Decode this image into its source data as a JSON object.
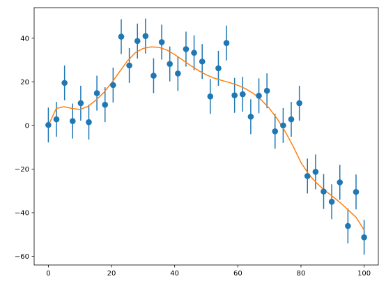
{
  "chart_data": {
    "type": "scatter",
    "title": "",
    "xlabel": "",
    "ylabel": "",
    "xlim": [
      -4.5,
      104.5
    ],
    "ylim": [
      -64,
      54
    ],
    "grid": false,
    "x_ticks": [
      0,
      20,
      40,
      60,
      80,
      100
    ],
    "y_ticks": [
      -60,
      -40,
      -20,
      0,
      20,
      40
    ],
    "colors": {
      "points": "#1f77b4",
      "line": "#ff7f0e",
      "axes": "#000000"
    },
    "series": [
      {
        "kind": "errorbar",
        "error": 8,
        "x": [
          0,
          2.56,
          5.13,
          7.69,
          10.26,
          12.82,
          15.38,
          17.95,
          20.51,
          23.08,
          25.64,
          28.21,
          30.77,
          33.33,
          35.9,
          38.46,
          41.03,
          43.59,
          46.15,
          48.72,
          51.28,
          53.85,
          56.41,
          58.97,
          61.54,
          64.1,
          66.67,
          69.23,
          71.79,
          74.36,
          76.92,
          79.49,
          82.05,
          84.62,
          87.18,
          89.74,
          92.31,
          94.87,
          97.44,
          100
        ],
        "y": [
          0.2,
          2.8,
          19.5,
          2.0,
          10.2,
          1.5,
          14.8,
          9.5,
          18.5,
          40.7,
          27.5,
          38.7,
          41.0,
          22.8,
          38.2,
          28.2,
          23.8,
          35.0,
          33.3,
          29.3,
          13.3,
          26.2,
          37.8,
          13.8,
          14.3,
          4.0,
          13.6,
          15.9,
          -2.7,
          0.0,
          2.8,
          10.2,
          -23.2,
          -21.3,
          -30.3,
          -35.0,
          -26.1,
          -46.1,
          -30.5,
          -51.3
        ]
      },
      {
        "kind": "line",
        "x": [
          0,
          2.5,
          5,
          7.5,
          10,
          12.5,
          15,
          17.5,
          20,
          22.5,
          25,
          27.5,
          30,
          32.5,
          35,
          37.5,
          40,
          42.5,
          45,
          47.5,
          50,
          52.5,
          55,
          57.5,
          60,
          62.5,
          65,
          67.5,
          70,
          72.5,
          75,
          77.5,
          80,
          82.5,
          85,
          87.5,
          90,
          92.5,
          95,
          97.5,
          100
        ],
        "y": [
          0,
          7.8,
          8.6,
          7.8,
          7.3,
          8.7,
          11.5,
          15.0,
          19.5,
          24.5,
          29.5,
          33.3,
          35.3,
          36.0,
          35.8,
          34.6,
          32.5,
          30.0,
          27.5,
          25.2,
          23.2,
          21.7,
          20.6,
          19.6,
          18.4,
          16.8,
          14.6,
          11.6,
          7.8,
          3.0,
          -2.8,
          -9.5,
          -17.0,
          -22.5,
          -26.5,
          -29.8,
          -32.5,
          -35.5,
          -38.8,
          -42.2,
          -48.0
        ]
      }
    ]
  }
}
